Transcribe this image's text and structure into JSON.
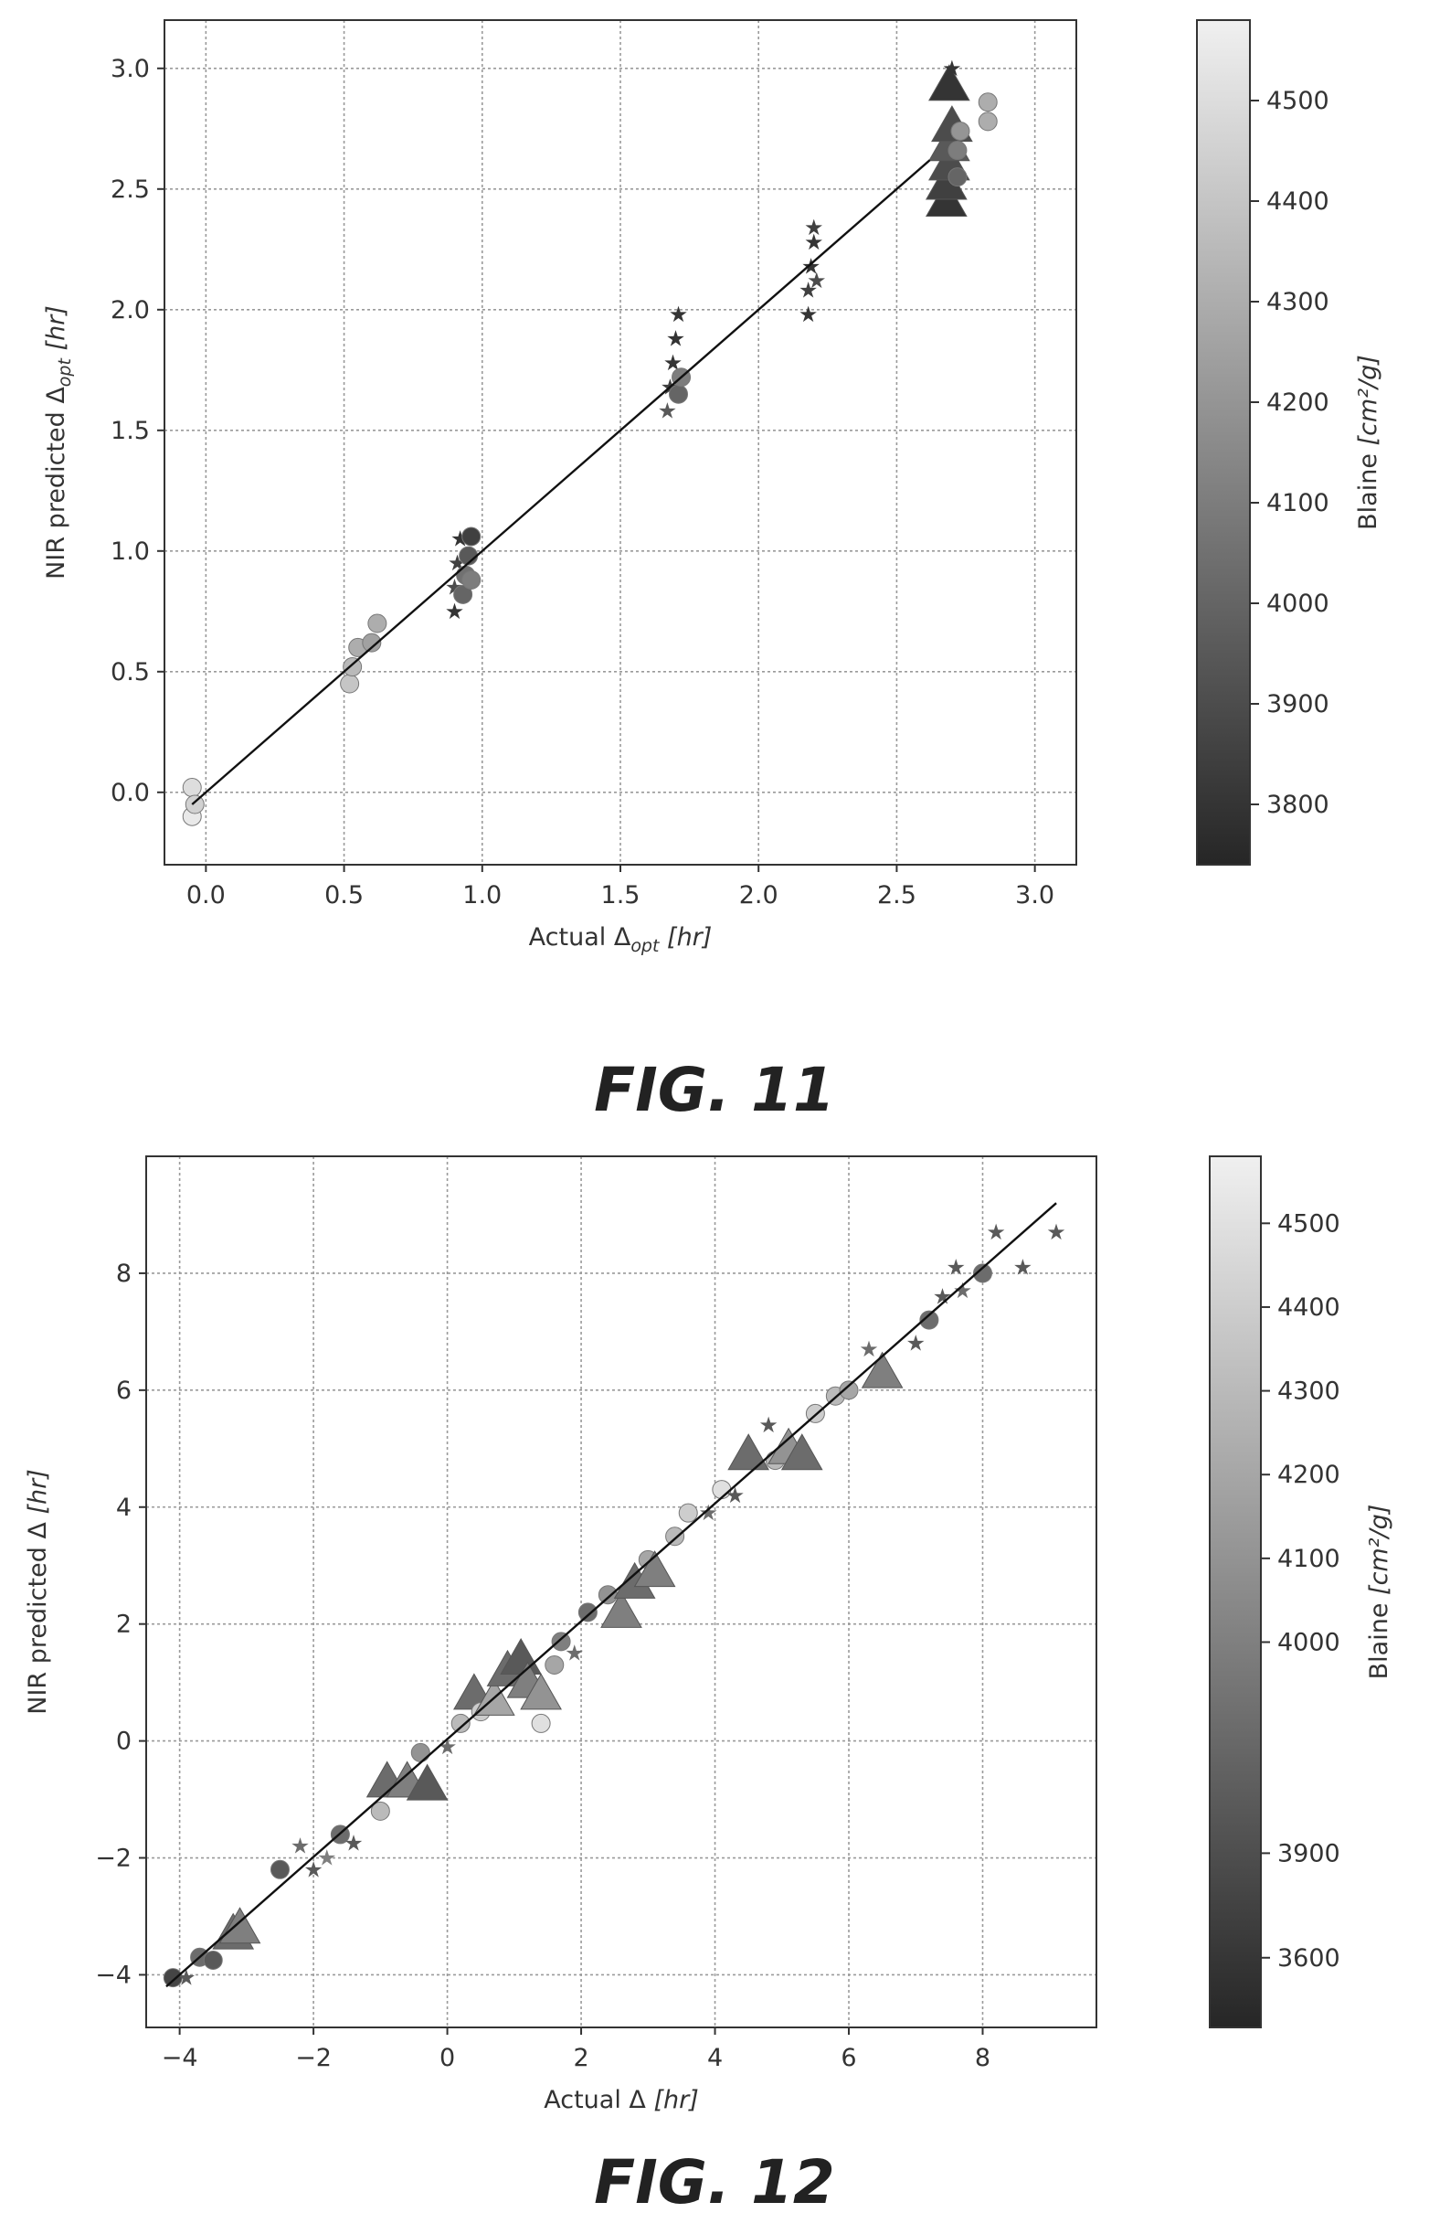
{
  "colors": {
    "low": "#262626",
    "high": "#f0f0f0",
    "axis": "#333333"
  },
  "chart_data": [
    {
      "type": "scatter",
      "figure_label": "FIG. 11",
      "xlabel": "Actual Δ",
      "xlabel_sub": "opt",
      "xlabel_unit": "[hr]",
      "ylabel": "NIR predicted Δ",
      "ylabel_sub": "opt",
      "ylabel_unit": "[hr]",
      "xlim": [
        -0.15,
        3.15
      ],
      "ylim": [
        -0.3,
        3.2
      ],
      "xticks": [
        0.0,
        0.5,
        1.0,
        1.5,
        2.0,
        2.5,
        3.0
      ],
      "yticks": [
        0.0,
        0.5,
        1.0,
        1.5,
        2.0,
        2.5,
        3.0
      ],
      "xtick_labels": [
        "0.0",
        "0.5",
        "1.0",
        "1.5",
        "2.0",
        "2.5",
        "3.0"
      ],
      "ytick_labels": [
        "0.0",
        "0.5",
        "1.0",
        "1.5",
        "2.0",
        "2.5",
        "3.0"
      ],
      "grid": true,
      "fit_line": [
        [
          -0.05,
          -0.05
        ],
        [
          2.62,
          2.62
        ]
      ],
      "colorbar": {
        "label": "Blaine",
        "label_unit": "[cm²/g]",
        "range": [
          3740,
          4580
        ],
        "ticks": [
          3800,
          3900,
          4000,
          4100,
          4200,
          4300,
          4400,
          4500
        ],
        "tick_labels": [
          "3800",
          "3900",
          "4000",
          "4100",
          "4200",
          "4300",
          "4400",
          "4500"
        ]
      },
      "points": [
        {
          "x": -0.05,
          "y": -0.1,
          "c": 4550,
          "m": "circle"
        },
        {
          "x": -0.05,
          "y": 0.02,
          "c": 4500,
          "m": "circle"
        },
        {
          "x": -0.04,
          "y": -0.05,
          "c": 4450,
          "m": "circle"
        },
        {
          "x": 0.52,
          "y": 0.45,
          "c": 4400,
          "m": "circle"
        },
        {
          "x": 0.53,
          "y": 0.52,
          "c": 4350,
          "m": "circle"
        },
        {
          "x": 0.55,
          "y": 0.6,
          "c": 4300,
          "m": "circle"
        },
        {
          "x": 0.6,
          "y": 0.62,
          "c": 4250,
          "m": "circle"
        },
        {
          "x": 0.62,
          "y": 0.7,
          "c": 4300,
          "m": "circle"
        },
        {
          "x": 0.9,
          "y": 0.75,
          "c": 3800,
          "m": "star"
        },
        {
          "x": 0.9,
          "y": 0.85,
          "c": 3900,
          "m": "star"
        },
        {
          "x": 0.91,
          "y": 0.95,
          "c": 3850,
          "m": "star"
        },
        {
          "x": 0.92,
          "y": 1.05,
          "c": 3800,
          "m": "star"
        },
        {
          "x": 0.93,
          "y": 0.82,
          "c": 4000,
          "m": "circle"
        },
        {
          "x": 0.94,
          "y": 0.9,
          "c": 4050,
          "m": "circle"
        },
        {
          "x": 0.95,
          "y": 0.98,
          "c": 3950,
          "m": "circle"
        },
        {
          "x": 0.96,
          "y": 1.06,
          "c": 3850,
          "m": "circle"
        },
        {
          "x": 0.96,
          "y": 0.88,
          "c": 4100,
          "m": "circle"
        },
        {
          "x": 1.67,
          "y": 1.58,
          "c": 3950,
          "m": "star"
        },
        {
          "x": 1.68,
          "y": 1.68,
          "c": 3850,
          "m": "star"
        },
        {
          "x": 1.69,
          "y": 1.78,
          "c": 3800,
          "m": "star"
        },
        {
          "x": 1.7,
          "y": 1.88,
          "c": 3800,
          "m": "star"
        },
        {
          "x": 1.71,
          "y": 1.98,
          "c": 3800,
          "m": "star"
        },
        {
          "x": 1.71,
          "y": 1.65,
          "c": 4000,
          "m": "circle"
        },
        {
          "x": 1.72,
          "y": 1.72,
          "c": 4100,
          "m": "circle"
        },
        {
          "x": 2.18,
          "y": 1.98,
          "c": 3800,
          "m": "star"
        },
        {
          "x": 2.18,
          "y": 2.08,
          "c": 3850,
          "m": "star"
        },
        {
          "x": 2.19,
          "y": 2.18,
          "c": 3800,
          "m": "star"
        },
        {
          "x": 2.2,
          "y": 2.28,
          "c": 3800,
          "m": "star"
        },
        {
          "x": 2.2,
          "y": 2.34,
          "c": 3850,
          "m": "star"
        },
        {
          "x": 2.21,
          "y": 2.12,
          "c": 3900,
          "m": "star"
        },
        {
          "x": 2.68,
          "y": 2.45,
          "c": 3800,
          "m": "triangle"
        },
        {
          "x": 2.68,
          "y": 2.52,
          "c": 3850,
          "m": "triangle"
        },
        {
          "x": 2.69,
          "y": 2.6,
          "c": 3900,
          "m": "triangle"
        },
        {
          "x": 2.69,
          "y": 2.68,
          "c": 3950,
          "m": "triangle"
        },
        {
          "x": 2.7,
          "y": 2.76,
          "c": 3900,
          "m": "triangle"
        },
        {
          "x": 2.69,
          "y": 2.93,
          "c": 3800,
          "m": "triangle"
        },
        {
          "x": 2.7,
          "y": 3.0,
          "c": 3800,
          "m": "star"
        },
        {
          "x": 2.72,
          "y": 2.55,
          "c": 4000,
          "m": "circle"
        },
        {
          "x": 2.72,
          "y": 2.66,
          "c": 4100,
          "m": "circle"
        },
        {
          "x": 2.73,
          "y": 2.74,
          "c": 4200,
          "m": "circle"
        },
        {
          "x": 2.83,
          "y": 2.78,
          "c": 4300,
          "m": "circle"
        },
        {
          "x": 2.83,
          "y": 2.86,
          "c": 4300,
          "m": "circle"
        }
      ]
    },
    {
      "type": "scatter",
      "figure_label": "FIG. 12",
      "xlabel": "Actual Δ",
      "xlabel_sub": "",
      "xlabel_unit": "[hr]",
      "ylabel": "NIR predicted Δ",
      "ylabel_sub": "",
      "ylabel_unit": "[hr]",
      "xlim": [
        -4.5,
        9.7
      ],
      "ylim": [
        -4.9,
        10.0
      ],
      "xticks": [
        -4,
        -2,
        0,
        2,
        4,
        6,
        8
      ],
      "yticks": [
        -4,
        -2,
        0,
        2,
        4,
        6,
        8
      ],
      "xtick_labels": [
        "−4",
        "−2",
        "0",
        "2",
        "4",
        "6",
        "8"
      ],
      "ytick_labels": [
        "−4",
        "−2",
        "0",
        "2",
        "4",
        "6",
        "8"
      ],
      "grid": true,
      "fit_line": [
        [
          -4.2,
          -4.2
        ],
        [
          9.1,
          9.2
        ]
      ],
      "colorbar": {
        "label": "Blaine",
        "label_unit": "[cm²/g]",
        "range": [
          3540,
          4580
        ],
        "ticks": [
          3600,
          3900,
          4000,
          4100,
          4200,
          4300,
          4400,
          4500
        ],
        "tick_labels": [
          "3600",
          "3900",
          "4000",
          "4100",
          "4200",
          "4300",
          "4400",
          "4500"
        ]
      },
      "points": [
        {
          "x": -4.1,
          "y": -4.05,
          "c": 3700,
          "m": "circle"
        },
        {
          "x": -3.9,
          "y": -4.05,
          "c": 3800,
          "m": "star"
        },
        {
          "x": -3.7,
          "y": -3.7,
          "c": 3900,
          "m": "circle"
        },
        {
          "x": -3.5,
          "y": -3.75,
          "c": 3800,
          "m": "circle"
        },
        {
          "x": -3.2,
          "y": -3.3,
          "c": 3900,
          "m": "triangle"
        },
        {
          "x": -3.1,
          "y": -3.2,
          "c": 4000,
          "m": "triangle"
        },
        {
          "x": -2.5,
          "y": -2.2,
          "c": 3800,
          "m": "circle"
        },
        {
          "x": -2.2,
          "y": -1.8,
          "c": 3900,
          "m": "star"
        },
        {
          "x": -2.0,
          "y": -2.2,
          "c": 3800,
          "m": "star"
        },
        {
          "x": -1.8,
          "y": -2.0,
          "c": 4000,
          "m": "star"
        },
        {
          "x": -1.6,
          "y": -1.6,
          "c": 3900,
          "m": "circle"
        },
        {
          "x": -1.4,
          "y": -1.75,
          "c": 3800,
          "m": "star"
        },
        {
          "x": -1.0,
          "y": -1.2,
          "c": 4300,
          "m": "circle"
        },
        {
          "x": -0.9,
          "y": -0.7,
          "c": 3900,
          "m": "triangle"
        },
        {
          "x": -0.6,
          "y": -0.7,
          "c": 4000,
          "m": "triangle"
        },
        {
          "x": -0.3,
          "y": -0.75,
          "c": 3800,
          "m": "triangle"
        },
        {
          "x": -0.4,
          "y": -0.2,
          "c": 4100,
          "m": "circle"
        },
        {
          "x": 0.0,
          "y": -0.1,
          "c": 3900,
          "m": "star"
        },
        {
          "x": 0.2,
          "y": 0.3,
          "c": 4300,
          "m": "circle"
        },
        {
          "x": 0.4,
          "y": 0.8,
          "c": 3900,
          "m": "triangle"
        },
        {
          "x": 0.5,
          "y": 0.5,
          "c": 4400,
          "m": "circle"
        },
        {
          "x": 0.7,
          "y": 0.7,
          "c": 4200,
          "m": "triangle"
        },
        {
          "x": 0.9,
          "y": 1.2,
          "c": 3900,
          "m": "triangle"
        },
        {
          "x": 1.1,
          "y": 1.4,
          "c": 3800,
          "m": "triangle"
        },
        {
          "x": 1.2,
          "y": 1.0,
          "c": 4000,
          "m": "triangle"
        },
        {
          "x": 1.4,
          "y": 0.8,
          "c": 4100,
          "m": "triangle"
        },
        {
          "x": 1.4,
          "y": 0.3,
          "c": 4500,
          "m": "circle"
        },
        {
          "x": 1.6,
          "y": 1.3,
          "c": 4200,
          "m": "circle"
        },
        {
          "x": 1.7,
          "y": 1.7,
          "c": 4000,
          "m": "circle"
        },
        {
          "x": 1.9,
          "y": 1.5,
          "c": 3900,
          "m": "star"
        },
        {
          "x": 2.1,
          "y": 2.2,
          "c": 3900,
          "m": "circle"
        },
        {
          "x": 2.4,
          "y": 2.5,
          "c": 4100,
          "m": "circle"
        },
        {
          "x": 2.6,
          "y": 2.2,
          "c": 4000,
          "m": "triangle"
        },
        {
          "x": 2.8,
          "y": 2.7,
          "c": 3900,
          "m": "triangle"
        },
        {
          "x": 3.0,
          "y": 3.1,
          "c": 4200,
          "m": "circle"
        },
        {
          "x": 3.1,
          "y": 2.9,
          "c": 4000,
          "m": "triangle"
        },
        {
          "x": 3.4,
          "y": 3.5,
          "c": 4300,
          "m": "circle"
        },
        {
          "x": 3.6,
          "y": 3.9,
          "c": 4400,
          "m": "circle"
        },
        {
          "x": 3.9,
          "y": 3.9,
          "c": 3900,
          "m": "star"
        },
        {
          "x": 4.1,
          "y": 4.3,
          "c": 4500,
          "m": "circle"
        },
        {
          "x": 4.3,
          "y": 4.2,
          "c": 3800,
          "m": "star"
        },
        {
          "x": 4.5,
          "y": 4.9,
          "c": 3900,
          "m": "triangle"
        },
        {
          "x": 4.8,
          "y": 5.4,
          "c": 3800,
          "m": "star"
        },
        {
          "x": 4.9,
          "y": 4.8,
          "c": 4300,
          "m": "circle"
        },
        {
          "x": 5.1,
          "y": 5.0,
          "c": 4100,
          "m": "triangle"
        },
        {
          "x": 5.3,
          "y": 4.9,
          "c": 3900,
          "m": "triangle"
        },
        {
          "x": 5.5,
          "y": 5.6,
          "c": 4400,
          "m": "circle"
        },
        {
          "x": 5.8,
          "y": 5.9,
          "c": 4300,
          "m": "circle"
        },
        {
          "x": 6.0,
          "y": 6.0,
          "c": 4200,
          "m": "circle"
        },
        {
          "x": 6.3,
          "y": 6.7,
          "c": 3900,
          "m": "star"
        },
        {
          "x": 6.5,
          "y": 6.3,
          "c": 4000,
          "m": "triangle"
        },
        {
          "x": 7.0,
          "y": 6.8,
          "c": 3800,
          "m": "star"
        },
        {
          "x": 7.2,
          "y": 7.2,
          "c": 3900,
          "m": "circle"
        },
        {
          "x": 7.4,
          "y": 7.6,
          "c": 3800,
          "m": "star"
        },
        {
          "x": 7.7,
          "y": 7.7,
          "c": 3900,
          "m": "star"
        },
        {
          "x": 7.6,
          "y": 8.1,
          "c": 3800,
          "m": "star"
        },
        {
          "x": 8.0,
          "y": 8.0,
          "c": 3900,
          "m": "circle"
        },
        {
          "x": 8.2,
          "y": 8.7,
          "c": 3800,
          "m": "star"
        },
        {
          "x": 8.6,
          "y": 8.1,
          "c": 3800,
          "m": "star"
        },
        {
          "x": 9.1,
          "y": 8.7,
          "c": 3800,
          "m": "star"
        }
      ]
    }
  ]
}
